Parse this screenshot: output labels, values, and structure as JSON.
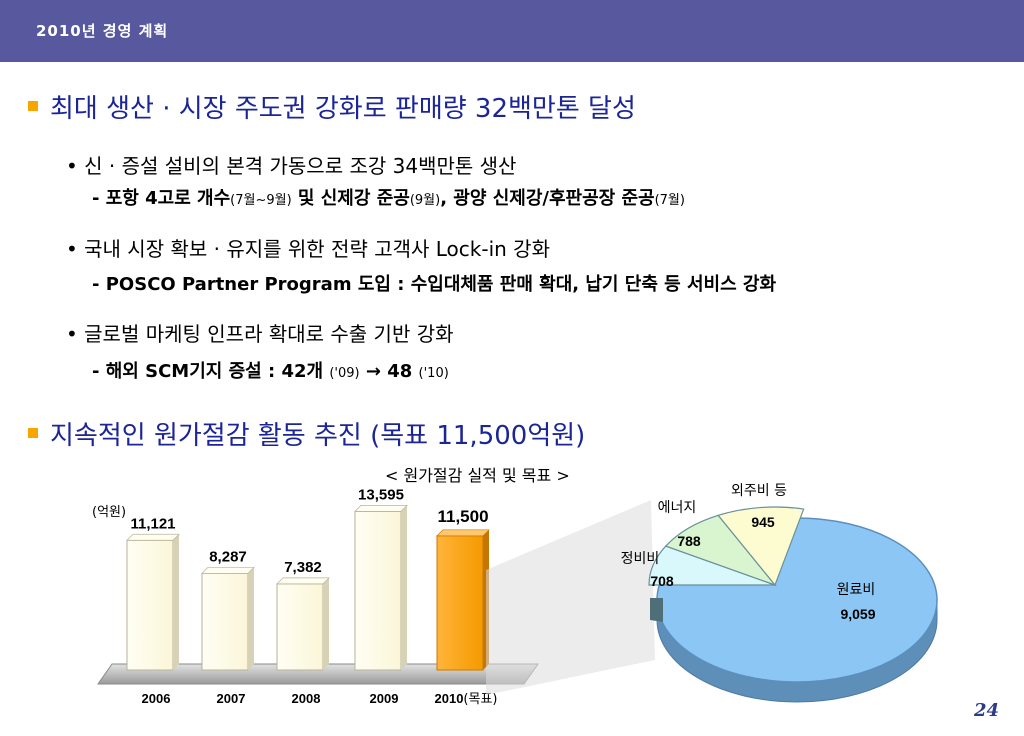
{
  "header": {
    "title": "2010년  경영 계획"
  },
  "section1": {
    "title": "최대 생산 · 시장 주도권 강화로 판매량 32백만톤 달성",
    "bullets": [
      {
        "main": "• 신 · 증설 설비의 본격 가동으로 조강 34백만톤 생산",
        "sub_a": "- 포항 4고로 개수",
        "sub_b": "(7월~9월)",
        "sub_c": " 및 신제강 준공",
        "sub_d": "(9월)",
        "sub_e": ", 광양 신제강/후판공장 준공",
        "sub_f": "(7월)"
      },
      {
        "main": "• 국내 시장 확보 · 유지를 위한 전략 고객사 Lock-in 강화",
        "sub": "- POSCO Partner Program 도입 : 수입대체품 판매 확대, 납기 단축 등 서비스 강화"
      },
      {
        "main": "•  글로벌 마케팅 인프라 확대로 수출 기반 강화",
        "sub_a": "- 해외 SCM기지 증설 : 42개 ",
        "sub_b": "('09)",
        "sub_c": " → 48 ",
        "sub_d": "('10)"
      }
    ]
  },
  "section2": {
    "title": "지속적인 원가절감 활동 추진 (목표 11,500억원)"
  },
  "page_number": "24",
  "chart_data": [
    {
      "type": "bar",
      "title": "< 원가절감 실적 및 목표 >",
      "unit": "(억원)",
      "categories": [
        "2006",
        "2007",
        "2008",
        "2009",
        "2010(목표)"
      ],
      "values": [
        11121,
        8287,
        7382,
        13595,
        11500
      ],
      "value_labels": [
        "11,121",
        "8,287",
        "7,382",
        "13,595",
        "11,500"
      ],
      "colors": {
        "actual": "#fbf6d8",
        "target": "#f59a00"
      }
    },
    {
      "type": "pie",
      "slices": [
        {
          "label": "원료비",
          "value": 9059,
          "value_label": "9,059",
          "color": "#8cc6f4"
        },
        {
          "label": "정비비",
          "value": 708,
          "value_label": "708",
          "color": "#d9f8fb"
        },
        {
          "label": "에너지",
          "value": 788,
          "value_label": "788",
          "color": "#d8f5cf"
        },
        {
          "label": "외주비 등",
          "value": 945,
          "value_label": "945",
          "color": "#fdfcd0"
        }
      ]
    }
  ]
}
